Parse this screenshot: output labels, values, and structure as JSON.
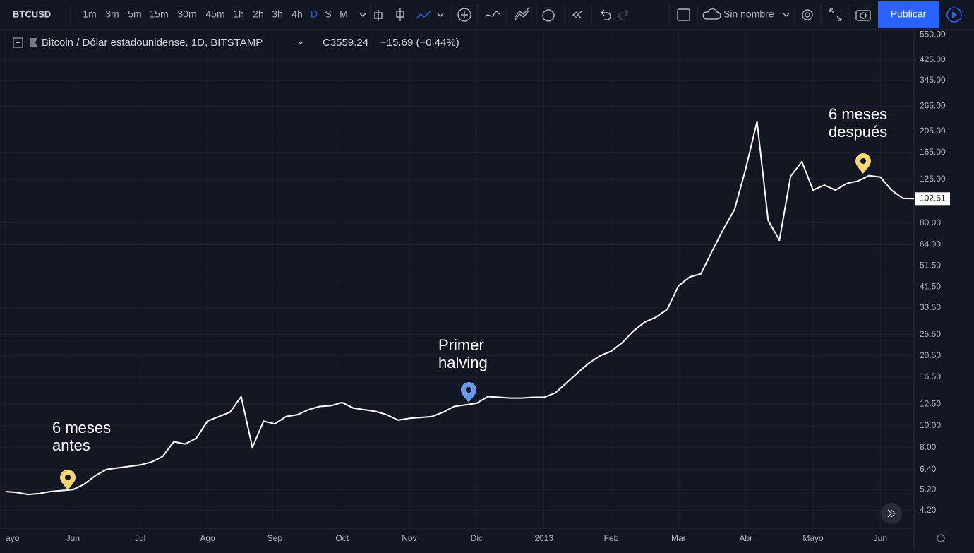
{
  "toolbar": {
    "symbol": "BTCUSD",
    "intervals": [
      "1m",
      "3m",
      "5m",
      "15m",
      "30m",
      "45m",
      "1h",
      "2h",
      "3h",
      "4h",
      "D",
      "S",
      "M"
    ],
    "layout_name": "Sin nombre",
    "publish": "Publicar"
  },
  "legend": {
    "title": "Bitcoin / Dólar estadounidense, 1D, BITSTAMP",
    "close": "C3559.24",
    "change": "−15.69 (−0.44%)"
  },
  "chart_data": {
    "type": "line",
    "log_scale": true,
    "grid": true,
    "categories": [
      "ayo",
      null,
      null,
      null,
      null,
      null,
      "Jun",
      null,
      null,
      null,
      null,
      null,
      "Jul",
      null,
      null,
      null,
      null,
      null,
      "Ago",
      null,
      null,
      null,
      null,
      null,
      "Sep",
      null,
      null,
      null,
      null,
      null,
      "Oct",
      null,
      null,
      null,
      null,
      null,
      "Nov",
      null,
      null,
      null,
      null,
      null,
      "Dic",
      null,
      null,
      null,
      null,
      null,
      "2013",
      null,
      null,
      null,
      null,
      null,
      "Feb",
      null,
      null,
      null,
      null,
      null,
      "Mar",
      null,
      null,
      null,
      null,
      null,
      "Abr",
      null,
      null,
      null,
      null,
      null,
      "Mayo",
      null,
      null,
      null,
      null,
      null,
      "Jun",
      null,
      null,
      null
    ],
    "series": [
      {
        "name": "BTCUSD",
        "color": "#ffffff",
        "values": [
          5.1,
          5.05,
          4.95,
          5.0,
          5.1,
          5.15,
          5.2,
          5.5,
          6.0,
          6.4,
          6.5,
          6.6,
          6.7,
          6.9,
          7.3,
          8.5,
          8.3,
          8.8,
          10.5,
          11.0,
          11.5,
          13.5,
          8.0,
          10.5,
          10.2,
          11.0,
          11.2,
          11.8,
          12.2,
          12.3,
          12.7,
          12.0,
          11.8,
          11.6,
          11.2,
          10.6,
          10.8,
          10.9,
          11.0,
          11.5,
          12.2,
          12.4,
          12.6,
          13.5,
          13.4,
          13.3,
          13.3,
          13.4,
          13.4,
          14.0,
          15.5,
          17.2,
          19.0,
          20.5,
          21.5,
          23.5,
          26.5,
          29.0,
          30.5,
          33.0,
          42.0,
          46.0,
          47.5,
          60.0,
          75.0,
          92.0,
          140.0,
          226.0,
          82.0,
          67.0,
          129.0,
          150.0,
          112.0,
          118.0,
          112.0,
          120.0,
          123.0,
          130.0,
          128.0,
          112.0,
          103.0,
          102.61
        ]
      }
    ],
    "ylim": [
      3.5,
      580
    ],
    "yticks": [
      {
        "value": 550,
        "label": "550.00"
      },
      {
        "value": 425,
        "label": "425.00"
      },
      {
        "value": 345,
        "label": "345.00"
      },
      {
        "value": 265,
        "label": "265.00"
      },
      {
        "value": 205,
        "label": "205.00"
      },
      {
        "value": 165,
        "label": "165.00"
      },
      {
        "value": 125,
        "label": "125.00"
      },
      {
        "value": 80,
        "label": "80.00"
      },
      {
        "value": 64,
        "label": "64.00"
      },
      {
        "value": 51.5,
        "label": "51.50"
      },
      {
        "value": 41.5,
        "label": "41.50"
      },
      {
        "value": 33.5,
        "label": "33.50"
      },
      {
        "value": 25.5,
        "label": "25.50"
      },
      {
        "value": 20.5,
        "label": "20.50"
      },
      {
        "value": 16.5,
        "label": "16.50"
      },
      {
        "value": 12.5,
        "label": "12.50"
      },
      {
        "value": 10,
        "label": "10.00"
      },
      {
        "value": 8,
        "label": "8.00"
      },
      {
        "value": 6.4,
        "label": "6.40"
      },
      {
        "value": 5.2,
        "label": "5.20"
      },
      {
        "value": 4.2,
        "label": "4.20"
      }
    ],
    "annotations": [
      {
        "lines": [
          "6 meses",
          "antes"
        ],
        "color": "#f7d774"
      },
      {
        "lines": [
          "Primer",
          "halving"
        ],
        "color": "#6a9be8"
      },
      {
        "lines": [
          "6 meses",
          "después"
        ],
        "color": "#f7d774"
      }
    ]
  }
}
